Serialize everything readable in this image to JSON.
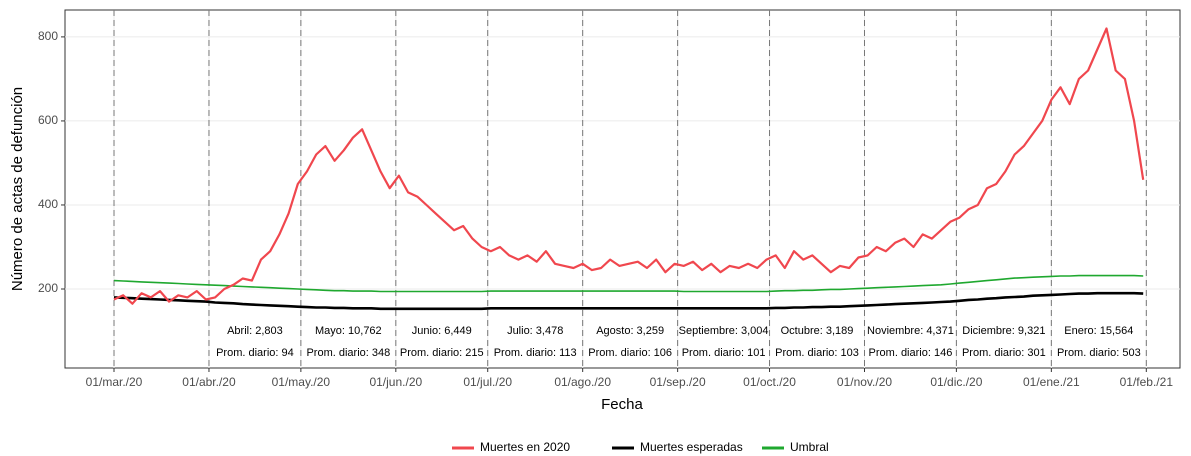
{
  "chart_data": {
    "type": "line",
    "x_label": "Fecha",
    "y_label": "Número de actas de defunción",
    "xlim": [
      "2020-02-14",
      "2021-02-12"
    ],
    "ylim": [
      12,
      864
    ],
    "yticks": [
      200,
      400,
      600,
      800
    ],
    "grid": true,
    "legend": "bottom",
    "xticks": [
      {
        "value": "2020-03-01",
        "label": "01/mar./20"
      },
      {
        "value": "2020-04-01",
        "label": "01/abr./20"
      },
      {
        "value": "2020-05-01",
        "label": "01/may./20"
      },
      {
        "value": "2020-06-01",
        "label": "01/jun./20"
      },
      {
        "value": "2020-07-01",
        "label": "01/jul./20"
      },
      {
        "value": "2020-08-01",
        "label": "01/ago./20"
      },
      {
        "value": "2020-09-01",
        "label": "01/sep./20"
      },
      {
        "value": "2020-10-01",
        "label": "01/oct./20"
      },
      {
        "value": "2020-11-01",
        "label": "01/nov./20"
      },
      {
        "value": "2020-12-01",
        "label": "01/dic./20"
      },
      {
        "value": "2021-01-01",
        "label": "01/ene./21"
      },
      {
        "value": "2021-02-01",
        "label": "01/feb./21"
      }
    ],
    "annotations": [
      {
        "label": "Abril: 2,803",
        "daily": "Prom. diario: 94"
      },
      {
        "label": "Mayo: 10,762",
        "daily": "Prom. diario: 348"
      },
      {
        "label": "Junio: 6,449",
        "daily": "Prom. diario: 215"
      },
      {
        "label": "Julio: 3,478",
        "daily": "Prom. diario: 113"
      },
      {
        "label": "Agosto: 3,259",
        "daily": "Prom. diario: 106"
      },
      {
        "label": "Septiembre: 3,004",
        "daily": "Prom. diario: 101"
      },
      {
        "label": "Octubre: 3,189",
        "daily": "Prom. diario: 103"
      },
      {
        "label": "Noviembre: 4,371",
        "daily": "Prom. diario: 146"
      },
      {
        "label": "Diciembre: 9,321",
        "daily": "Prom. diario: 301"
      },
      {
        "label": "Enero: 15,564",
        "daily": "Prom. diario: 503"
      }
    ],
    "x": [
      "2020-03-01",
      "2020-03-04",
      "2020-03-07",
      "2020-03-10",
      "2020-03-13",
      "2020-03-16",
      "2020-03-19",
      "2020-03-22",
      "2020-03-25",
      "2020-03-28",
      "2020-03-31",
      "2020-04-03",
      "2020-04-06",
      "2020-04-09",
      "2020-04-12",
      "2020-04-15",
      "2020-04-18",
      "2020-04-21",
      "2020-04-24",
      "2020-04-27",
      "2020-04-30",
      "2020-05-03",
      "2020-05-06",
      "2020-05-09",
      "2020-05-12",
      "2020-05-15",
      "2020-05-18",
      "2020-05-21",
      "2020-05-24",
      "2020-05-27",
      "2020-05-30",
      "2020-06-02",
      "2020-06-05",
      "2020-06-08",
      "2020-06-11",
      "2020-06-14",
      "2020-06-17",
      "2020-06-20",
      "2020-06-23",
      "2020-06-26",
      "2020-06-29",
      "2020-07-02",
      "2020-07-05",
      "2020-07-08",
      "2020-07-11",
      "2020-07-14",
      "2020-07-17",
      "2020-07-20",
      "2020-07-23",
      "2020-07-26",
      "2020-07-29",
      "2020-08-01",
      "2020-08-04",
      "2020-08-07",
      "2020-08-10",
      "2020-08-13",
      "2020-08-16",
      "2020-08-19",
      "2020-08-22",
      "2020-08-25",
      "2020-08-28",
      "2020-08-31",
      "2020-09-03",
      "2020-09-06",
      "2020-09-09",
      "2020-09-12",
      "2020-09-15",
      "2020-09-18",
      "2020-09-21",
      "2020-09-24",
      "2020-09-27",
      "2020-09-30",
      "2020-10-03",
      "2020-10-06",
      "2020-10-09",
      "2020-10-12",
      "2020-10-15",
      "2020-10-18",
      "2020-10-21",
      "2020-10-24",
      "2020-10-27",
      "2020-10-30",
      "2020-11-02",
      "2020-11-05",
      "2020-11-08",
      "2020-11-11",
      "2020-11-14",
      "2020-11-17",
      "2020-11-20",
      "2020-11-23",
      "2020-11-26",
      "2020-11-29",
      "2020-12-02",
      "2020-12-05",
      "2020-12-08",
      "2020-12-11",
      "2020-12-14",
      "2020-12-17",
      "2020-12-20",
      "2020-12-23",
      "2020-12-26",
      "2020-12-29",
      "2021-01-01",
      "2021-01-04",
      "2021-01-07",
      "2021-01-10",
      "2021-01-13",
      "2021-01-16",
      "2021-01-19",
      "2021-01-22",
      "2021-01-25",
      "2021-01-28",
      "2021-01-31"
    ],
    "series": [
      {
        "name": "Muertes en 2020",
        "color": "#f0474e",
        "values": [
          175,
          185,
          165,
          190,
          180,
          195,
          170,
          185,
          180,
          195,
          175,
          180,
          200,
          210,
          225,
          220,
          270,
          290,
          330,
          380,
          450,
          480,
          520,
          540,
          505,
          530,
          560,
          580,
          530,
          480,
          440,
          470,
          430,
          420,
          400,
          380,
          360,
          340,
          350,
          320,
          300,
          290,
          300,
          280,
          270,
          280,
          265,
          290,
          260,
          255,
          250,
          260,
          245,
          250,
          270,
          255,
          260,
          265,
          250,
          270,
          240,
          260,
          255,
          265,
          245,
          260,
          240,
          255,
          250,
          260,
          250,
          270,
          280,
          250,
          290,
          270,
          280,
          260,
          240,
          255,
          250,
          275,
          280,
          300,
          290,
          310,
          320,
          300,
          330,
          320,
          340,
          360,
          370,
          390,
          400,
          440,
          450,
          480,
          520,
          540,
          570,
          600,
          650,
          680,
          640,
          700,
          720,
          770,
          820,
          720,
          700,
          600,
          460
        ]
      },
      {
        "name": "Muertes esperadas",
        "color": "#000000",
        "values": [
          180,
          179,
          178,
          177,
          176,
          175,
          174,
          173,
          172,
          171,
          170,
          168,
          167,
          166,
          164,
          163,
          162,
          161,
          160,
          159,
          158,
          157,
          156,
          156,
          155,
          155,
          154,
          154,
          154,
          153,
          153,
          153,
          153,
          153,
          153,
          153,
          153,
          153,
          153,
          153,
          153,
          154,
          154,
          154,
          154,
          154,
          154,
          154,
          154,
          154,
          154,
          154,
          154,
          154,
          154,
          154,
          154,
          154,
          154,
          154,
          154,
          154,
          154,
          154,
          154,
          154,
          154,
          154,
          154,
          154,
          154,
          154,
          155,
          155,
          156,
          156,
          157,
          157,
          158,
          158,
          159,
          160,
          161,
          162,
          163,
          164,
          165,
          166,
          167,
          168,
          169,
          170,
          172,
          174,
          175,
          177,
          178,
          180,
          181,
          182,
          184,
          185,
          186,
          187,
          188,
          189,
          189,
          190,
          190,
          190,
          190,
          190,
          189
        ]
      },
      {
        "name": "Umbral",
        "color": "#1fa82f",
        "values": [
          220,
          219,
          218,
          217,
          216,
          215,
          214,
          213,
          212,
          211,
          210,
          209,
          208,
          207,
          206,
          205,
          204,
          203,
          202,
          201,
          200,
          199,
          198,
          197,
          196,
          196,
          195,
          195,
          195,
          194,
          194,
          194,
          194,
          194,
          194,
          194,
          194,
          194,
          194,
          194,
          194,
          195,
          195,
          195,
          195,
          195,
          195,
          195,
          195,
          195,
          195,
          195,
          195,
          195,
          195,
          195,
          195,
          195,
          195,
          195,
          195,
          195,
          194,
          194,
          194,
          194,
          194,
          194,
          194,
          194,
          194,
          194,
          195,
          196,
          196,
          197,
          197,
          198,
          199,
          199,
          200,
          201,
          202,
          203,
          204,
          205,
          206,
          207,
          208,
          209,
          210,
          212,
          214,
          216,
          218,
          220,
          222,
          224,
          226,
          227,
          228,
          229,
          230,
          231,
          231,
          232,
          232,
          232,
          232,
          232,
          232,
          232,
          231
        ]
      }
    ]
  }
}
